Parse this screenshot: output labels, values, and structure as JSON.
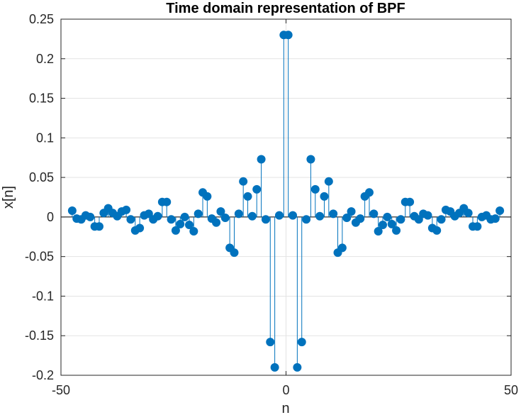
{
  "chart_data": {
    "type": "stem",
    "title": "Time domain representation of BPF",
    "xlabel": "n",
    "ylabel": "x[n]",
    "xlim": [
      -50,
      50
    ],
    "ylim": [
      -0.2,
      0.25
    ],
    "xticks": [
      -50,
      0,
      50
    ],
    "xtick_labels": [
      "-50",
      "0",
      "50"
    ],
    "yticks": [
      -0.2,
      -0.15,
      -0.1,
      -0.05,
      0,
      0.05,
      0.1,
      0.15,
      0.2,
      0.25
    ],
    "ytick_labels": [
      "-0.2",
      "-0.15",
      "-0.1",
      "-0.05",
      "0",
      "0.05",
      "0.1",
      "0.15",
      "0.2",
      "0.25"
    ],
    "grid": true,
    "series_color": "#0072BD",
    "x": [
      -47.5,
      -46.5,
      -45.5,
      -44.5,
      -43.5,
      -42.5,
      -41.5,
      -40.5,
      -39.5,
      -38.5,
      -37.5,
      -36.5,
      -35.5,
      -34.5,
      -33.5,
      -32.5,
      -31.5,
      -30.5,
      -29.5,
      -28.5,
      -27.5,
      -26.5,
      -25.5,
      -24.5,
      -23.5,
      -22.5,
      -21.5,
      -20.5,
      -19.5,
      -18.5,
      -17.5,
      -16.5,
      -15.5,
      -14.5,
      -13.5,
      -12.5,
      -11.5,
      -10.5,
      -9.5,
      -8.5,
      -7.5,
      -6.5,
      -5.5,
      -4.5,
      -3.5,
      -2.5,
      -1.5,
      -0.5,
      0.5,
      1.5,
      2.5,
      3.5,
      4.5,
      5.5,
      6.5,
      7.5,
      8.5,
      9.5,
      10.5,
      11.5,
      12.5,
      13.5,
      14.5,
      15.5,
      16.5,
      17.5,
      18.5,
      19.5,
      20.5,
      21.5,
      22.5,
      23.5,
      24.5,
      25.5,
      26.5,
      27.5,
      28.5,
      29.5,
      30.5,
      31.5,
      32.5,
      33.5,
      34.5,
      35.5,
      36.5,
      37.5,
      38.5,
      39.5,
      40.5,
      41.5,
      42.5,
      43.5,
      44.5,
      45.5,
      46.5,
      47.5
    ],
    "values": [
      0.008,
      -0.002,
      -0.003,
      0.002,
      0,
      -0.012,
      -0.012,
      0.005,
      0.011,
      0.005,
      0.001,
      0.007,
      0.009,
      -0.003,
      -0.017,
      -0.014,
      0.002,
      0.004,
      -0.003,
      0.001,
      0.019,
      0.019,
      -0.003,
      -0.017,
      -0.009,
      0,
      -0.01,
      -0.018,
      0.004,
      0.031,
      0.026,
      -0.002,
      -0.007,
      0.007,
      -0.001,
      -0.039,
      -0.045,
      0.004,
      0.045,
      0.026,
      0.001,
      0.035,
      0.073,
      -0.003,
      -0.158,
      -0.19,
      0.002,
      0.23,
      0.23,
      0.002,
      -0.19,
      -0.158,
      -0.003,
      0.073,
      0.035,
      0.001,
      0.026,
      0.045,
      0.004,
      -0.045,
      -0.039,
      -0.001,
      0.007,
      -0.007,
      -0.002,
      0.026,
      0.031,
      0.004,
      -0.018,
      -0.01,
      0,
      -0.009,
      -0.017,
      -0.003,
      0.019,
      0.019,
      0.001,
      -0.003,
      0.004,
      0.002,
      -0.014,
      -0.017,
      -0.003,
      0.009,
      0.007,
      0.001,
      0.005,
      0.011,
      0.005,
      -0.012,
      -0.012,
      0,
      0.002,
      -0.003,
      -0.002,
      0.008
    ]
  }
}
